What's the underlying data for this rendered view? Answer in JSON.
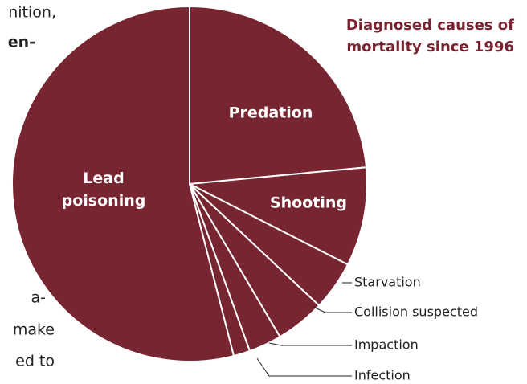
{
  "fragments": [
    "nition,",
    "en-",
    "a-",
    "make",
    "ed to"
  ],
  "chart_data": {
    "type": "pie",
    "title_lines": [
      "Diagnosed causes of",
      "mortality since 1996"
    ],
    "categories": [
      "Predation",
      "Shooting",
      "Starvation",
      "Collision suspected",
      "Impaction",
      "Infection",
      "Lead poisoning"
    ],
    "values": [
      23.5,
      9,
      4.5,
      4.5,
      3,
      1.5,
      54
    ],
    "color": "#772530"
  }
}
